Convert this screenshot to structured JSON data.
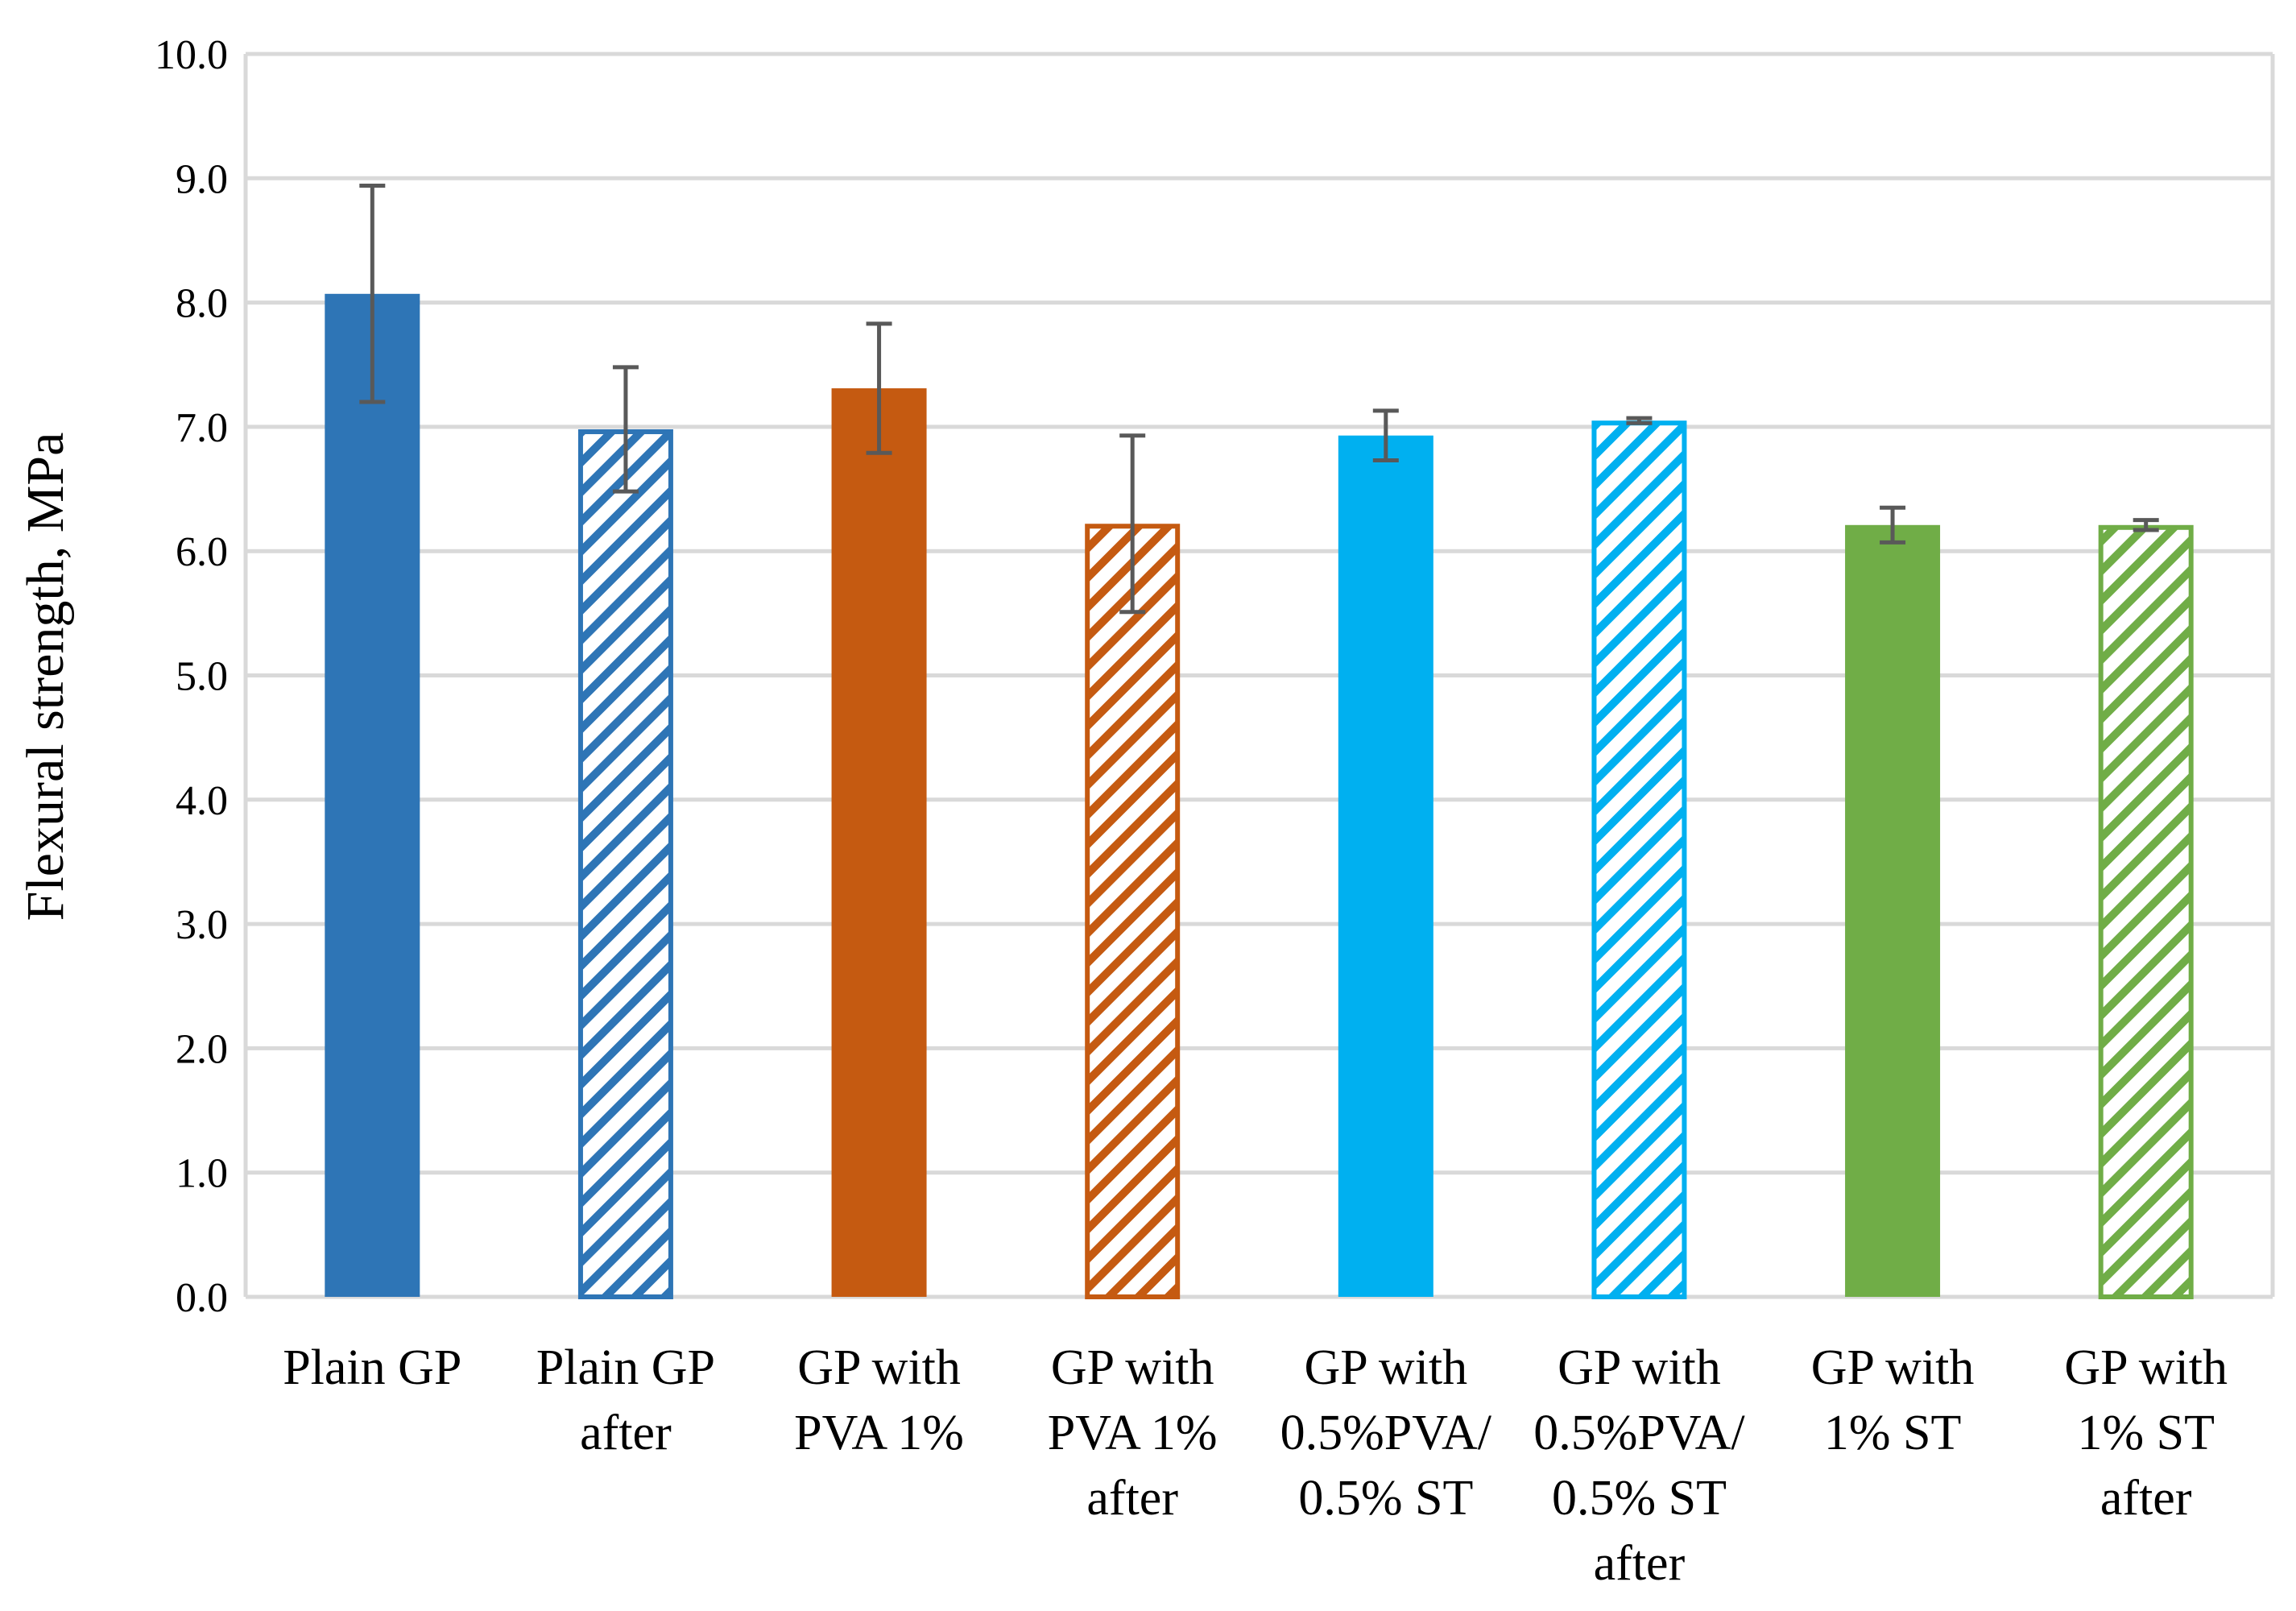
{
  "chart_data": {
    "type": "bar",
    "title": "",
    "xlabel": "",
    "ylabel": "Flexural strength, MPa",
    "ylim": [
      0,
      10
    ],
    "ytick_step": 1,
    "yticks": [
      "0.0",
      "1.0",
      "2.0",
      "3.0",
      "4.0",
      "5.0",
      "6.0",
      "7.0",
      "8.0",
      "9.0",
      "10.0"
    ],
    "grid": true,
    "legend": "none",
    "categories": [
      [
        "Plain GP"
      ],
      [
        "Plain GP",
        "after"
      ],
      [
        "GP with",
        "PVA 1%"
      ],
      [
        "GP with",
        "PVA 1%",
        "after"
      ],
      [
        "GP with",
        "0.5%PVA/",
        "0.5% ST"
      ],
      [
        "GP with",
        "0.5%PVA/",
        "0.5% ST",
        "after"
      ],
      [
        "GP with",
        "1% ST"
      ],
      [
        "GP with",
        "1% ST",
        "after"
      ]
    ],
    "values": [
      8.07,
      6.98,
      7.31,
      6.22,
      6.93,
      7.05,
      6.21,
      6.21
    ],
    "errors": [
      0.87,
      0.5,
      0.52,
      0.71,
      0.2,
      0.02,
      0.14,
      0.04
    ],
    "colors": [
      "#2E75B6",
      "#2E75B6",
      "#C55A11",
      "#C55A11",
      "#00B0F0",
      "#00B0F0",
      "#70AD47",
      "#70AD47"
    ],
    "hatched": [
      false,
      true,
      false,
      true,
      false,
      true,
      false,
      true
    ],
    "gridline_color": "#D9D9D9",
    "axis_color": "#D9D9D9",
    "errorbar_color": "#595959"
  }
}
